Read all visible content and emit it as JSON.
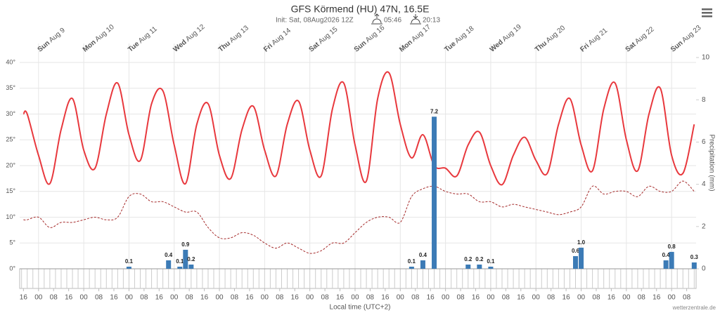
{
  "chart_data": {
    "type": "line",
    "title": "GFS Körmend (HU) 47N, 16.5E",
    "init": "Init: Sat, 08Aug2026 12Z",
    "sunrise": "05:46",
    "sunset": "20:13",
    "x_label": "Local time (UTC+2)",
    "y2_label": "Precipitation (mm)",
    "credit": "wetterzentrale.de",
    "grid": true,
    "xlim": [
      "2026-08-08T14:00",
      "2026-08-23T13:00"
    ],
    "ylim": [
      0,
      40
    ],
    "yticks": [
      {
        "value": 0,
        "label": "0°"
      },
      {
        "value": 5,
        "label": "5°"
      },
      {
        "value": 10,
        "label": "10°"
      },
      {
        "value": 15,
        "label": "15°"
      },
      {
        "value": 20,
        "label": "20°"
      },
      {
        "value": 25,
        "label": "25°"
      },
      {
        "value": 30,
        "label": "30°"
      },
      {
        "value": 35,
        "label": "35°"
      },
      {
        "value": 40,
        "label": "40°"
      }
    ],
    "y2lim": [
      0,
      10
    ],
    "y2ticks": [
      0,
      2,
      4,
      6,
      8,
      10
    ],
    "day_labels": [
      {
        "value": "2026-08-09T00:00",
        "label": "Sun Aug 9"
      },
      {
        "value": "2026-08-10T00:00",
        "label": "Mon Aug 10"
      },
      {
        "value": "2026-08-11T00:00",
        "label": "Tue Aug 11"
      },
      {
        "value": "2026-08-12T00:00",
        "label": "Wed Aug 12"
      },
      {
        "value": "2026-08-13T00:00",
        "label": "Thu Aug 13"
      },
      {
        "value": "2026-08-14T00:00",
        "label": "Fri Aug 14"
      },
      {
        "value": "2026-08-15T00:00",
        "label": "Sat Aug 15"
      },
      {
        "value": "2026-08-16T00:00",
        "label": "Sun Aug 16"
      },
      {
        "value": "2026-08-17T00:00",
        "label": "Mon Aug 17"
      },
      {
        "value": "2026-08-18T00:00",
        "label": "Tue Aug 18"
      },
      {
        "value": "2026-08-19T00:00",
        "label": "Wed Aug 19"
      },
      {
        "value": "2026-08-20T00:00",
        "label": "Thu Aug 20"
      },
      {
        "value": "2026-08-21T00:00",
        "label": "Fri Aug 21"
      },
      {
        "value": "2026-08-22T00:00",
        "label": "Sat Aug 22"
      },
      {
        "value": "2026-08-23T00:00",
        "label": "Sun Aug 23"
      }
    ],
    "xticks": [
      {
        "value": "2026-08-08T16:00",
        "label": "16"
      },
      {
        "value": "2026-08-09T00:00",
        "label": "00"
      },
      {
        "value": "2026-08-09T08:00",
        "label": "08"
      },
      {
        "value": "2026-08-09T16:00",
        "label": "16"
      },
      {
        "value": "2026-08-10T00:00",
        "label": "00"
      },
      {
        "value": "2026-08-10T08:00",
        "label": "08"
      },
      {
        "value": "2026-08-10T16:00",
        "label": "16"
      },
      {
        "value": "2026-08-11T00:00",
        "label": "00"
      },
      {
        "value": "2026-08-11T08:00",
        "label": "08"
      },
      {
        "value": "2026-08-11T16:00",
        "label": "16"
      },
      {
        "value": "2026-08-12T00:00",
        "label": "00"
      },
      {
        "value": "2026-08-12T08:00",
        "label": "08"
      },
      {
        "value": "2026-08-12T16:00",
        "label": "16"
      },
      {
        "value": "2026-08-13T00:00",
        "label": "00"
      },
      {
        "value": "2026-08-13T08:00",
        "label": "08"
      },
      {
        "value": "2026-08-13T16:00",
        "label": "16"
      },
      {
        "value": "2026-08-14T00:00",
        "label": "00"
      },
      {
        "value": "2026-08-14T08:00",
        "label": "08"
      },
      {
        "value": "2026-08-14T16:00",
        "label": "16"
      },
      {
        "value": "2026-08-15T00:00",
        "label": "00"
      },
      {
        "value": "2026-08-15T08:00",
        "label": "08"
      },
      {
        "value": "2026-08-15T16:00",
        "label": "16"
      },
      {
        "value": "2026-08-16T00:00",
        "label": "00"
      },
      {
        "value": "2026-08-16T08:00",
        "label": "08"
      },
      {
        "value": "2026-08-16T16:00",
        "label": "16"
      },
      {
        "value": "2026-08-17T00:00",
        "label": "00"
      },
      {
        "value": "2026-08-17T08:00",
        "label": "08"
      },
      {
        "value": "2026-08-17T16:00",
        "label": "16"
      },
      {
        "value": "2026-08-18T00:00",
        "label": "00"
      },
      {
        "value": "2026-08-18T08:00",
        "label": "08"
      },
      {
        "value": "2026-08-18T16:00",
        "label": "16"
      },
      {
        "value": "2026-08-19T00:00",
        "label": "00"
      },
      {
        "value": "2026-08-19T08:00",
        "label": "08"
      },
      {
        "value": "2026-08-19T16:00",
        "label": "16"
      },
      {
        "value": "2026-08-20T00:00",
        "label": "00"
      },
      {
        "value": "2026-08-20T08:00",
        "label": "08"
      },
      {
        "value": "2026-08-20T16:00",
        "label": "16"
      },
      {
        "value": "2026-08-21T00:00",
        "label": "00"
      },
      {
        "value": "2026-08-21T08:00",
        "label": "08"
      },
      {
        "value": "2026-08-21T16:00",
        "label": "16"
      },
      {
        "value": "2026-08-22T00:00",
        "label": "00"
      },
      {
        "value": "2026-08-22T08:00",
        "label": "08"
      },
      {
        "value": "2026-08-22T16:00",
        "label": "16"
      },
      {
        "value": "2026-08-23T00:00",
        "label": "00"
      },
      {
        "value": "2026-08-23T08:00",
        "label": "08"
      }
    ],
    "series": [
      {
        "color": "#e8383d",
        "x": [
          "2026-08-08T16:00",
          "2026-08-08T18:00",
          "2026-08-09T00:00",
          "2026-08-09T06:00",
          "2026-08-09T12:00",
          "2026-08-09T18:00",
          "2026-08-10T00:00",
          "2026-08-10T06:00",
          "2026-08-10T12:00",
          "2026-08-10T18:00",
          "2026-08-11T00:00",
          "2026-08-11T06:00",
          "2026-08-11T12:00",
          "2026-08-11T18:00",
          "2026-08-12T00:00",
          "2026-08-12T06:00",
          "2026-08-12T12:00",
          "2026-08-12T18:00",
          "2026-08-13T00:00",
          "2026-08-13T06:00",
          "2026-08-13T12:00",
          "2026-08-13T18:00",
          "2026-08-14T00:00",
          "2026-08-14T06:00",
          "2026-08-14T12:00",
          "2026-08-14T18:00",
          "2026-08-15T00:00",
          "2026-08-15T06:00",
          "2026-08-15T12:00",
          "2026-08-15T18:00",
          "2026-08-16T00:00",
          "2026-08-16T06:00",
          "2026-08-16T12:00",
          "2026-08-16T18:00",
          "2026-08-17T00:00",
          "2026-08-17T06:00",
          "2026-08-17T12:00",
          "2026-08-17T18:00",
          "2026-08-18T00:00",
          "2026-08-18T06:00",
          "2026-08-18T12:00",
          "2026-08-18T18:00",
          "2026-08-19T00:00",
          "2026-08-19T06:00",
          "2026-08-19T12:00",
          "2026-08-19T18:00",
          "2026-08-20T00:00",
          "2026-08-20T06:00",
          "2026-08-20T12:00",
          "2026-08-20T18:00",
          "2026-08-21T00:00",
          "2026-08-21T06:00",
          "2026-08-21T12:00",
          "2026-08-21T18:00",
          "2026-08-22T00:00",
          "2026-08-22T06:00",
          "2026-08-22T12:00",
          "2026-08-22T18:00",
          "2026-08-23T00:00",
          "2026-08-23T06:00",
          "2026-08-23T12:00"
        ],
        "values": [
          30,
          30,
          22,
          16.5,
          27,
          33,
          23,
          19.5,
          30,
          36,
          26,
          21,
          32,
          34.5,
          24,
          16.5,
          28,
          32,
          22,
          17.5,
          27,
          31.5,
          23,
          18,
          28,
          32.5,
          23,
          18,
          31,
          36,
          24,
          17,
          33,
          38,
          28,
          21.5,
          26,
          20,
          19.5,
          18,
          24,
          26.5,
          20,
          16.3,
          22,
          25.5,
          21,
          18.5,
          28,
          33,
          24,
          19,
          31,
          36,
          25,
          19,
          30,
          35,
          22,
          18.5,
          28
        ]
      },
      {
        "color": "#a52a2a",
        "dashed": true,
        "x": [
          "2026-08-08T16:00",
          "2026-08-08T18:00",
          "2026-08-09T00:00",
          "2026-08-09T06:00",
          "2026-08-09T12:00",
          "2026-08-09T18:00",
          "2026-08-10T00:00",
          "2026-08-10T06:00",
          "2026-08-10T12:00",
          "2026-08-10T18:00",
          "2026-08-11T00:00",
          "2026-08-11T06:00",
          "2026-08-11T12:00",
          "2026-08-11T18:00",
          "2026-08-12T00:00",
          "2026-08-12T06:00",
          "2026-08-12T12:00",
          "2026-08-12T18:00",
          "2026-08-13T00:00",
          "2026-08-13T06:00",
          "2026-08-13T12:00",
          "2026-08-13T18:00",
          "2026-08-14T00:00",
          "2026-08-14T06:00",
          "2026-08-14T12:00",
          "2026-08-14T18:00",
          "2026-08-15T00:00",
          "2026-08-15T06:00",
          "2026-08-15T12:00",
          "2026-08-15T18:00",
          "2026-08-16T00:00",
          "2026-08-16T06:00",
          "2026-08-16T12:00",
          "2026-08-16T18:00",
          "2026-08-17T00:00",
          "2026-08-17T06:00",
          "2026-08-17T12:00",
          "2026-08-17T18:00",
          "2026-08-18T00:00",
          "2026-08-18T06:00",
          "2026-08-18T12:00",
          "2026-08-18T18:00",
          "2026-08-19T00:00",
          "2026-08-19T06:00",
          "2026-08-19T12:00",
          "2026-08-19T18:00",
          "2026-08-20T00:00",
          "2026-08-20T06:00",
          "2026-08-20T12:00",
          "2026-08-20T18:00",
          "2026-08-21T00:00",
          "2026-08-21T06:00",
          "2026-08-21T12:00",
          "2026-08-21T18:00",
          "2026-08-22T00:00",
          "2026-08-22T06:00",
          "2026-08-22T12:00",
          "2026-08-22T18:00",
          "2026-08-23T00:00",
          "2026-08-23T06:00",
          "2026-08-23T12:00"
        ],
        "values": [
          9.5,
          9.5,
          10,
          8,
          9,
          9,
          9.5,
          10,
          9.5,
          10,
          14,
          14.5,
          13,
          13,
          12,
          11,
          11,
          8,
          6,
          6,
          7,
          6.5,
          5,
          4,
          5,
          4,
          3,
          3.5,
          5,
          5,
          7,
          9,
          10,
          10,
          9,
          14,
          15.5,
          16,
          15,
          14.5,
          14.5,
          13,
          13,
          12,
          12.5,
          12,
          11.5,
          11,
          10.5,
          11,
          12,
          16,
          14.5,
          15,
          15,
          14,
          16,
          15,
          15,
          17,
          15
        ]
      },
      {
        "color": "#3c7bb6",
        "type": "bar",
        "axis": "y2",
        "x": [
          "2026-08-11T00:00",
          "2026-08-11T21:00",
          "2026-08-12T03:00",
          "2026-08-12T06:00",
          "2026-08-12T09:00",
          "2026-08-17T06:00",
          "2026-08-17T12:00",
          "2026-08-17T18:00",
          "2026-08-18T12:00",
          "2026-08-18T18:00",
          "2026-08-19T00:00",
          "2026-08-20T21:00",
          "2026-08-21T00:00",
          "2026-08-22T21:00",
          "2026-08-23T00:00",
          "2026-08-23T12:00"
        ],
        "values": [
          0.1,
          0.4,
          0.1,
          0.9,
          0.2,
          0.1,
          0.4,
          7.2,
          0.2,
          0.2,
          0.1,
          0.6,
          1,
          0.4,
          0.8,
          0.3
        ],
        "value_labels": [
          "0.1",
          "0.4",
          "0.1",
          "0.9",
          "0.2",
          "0.1",
          "0.4",
          "7.2",
          "0.2",
          "0.2",
          "0.1",
          "0.6",
          "1.0",
          "0.4",
          "0.8",
          "0.3"
        ]
      }
    ]
  }
}
